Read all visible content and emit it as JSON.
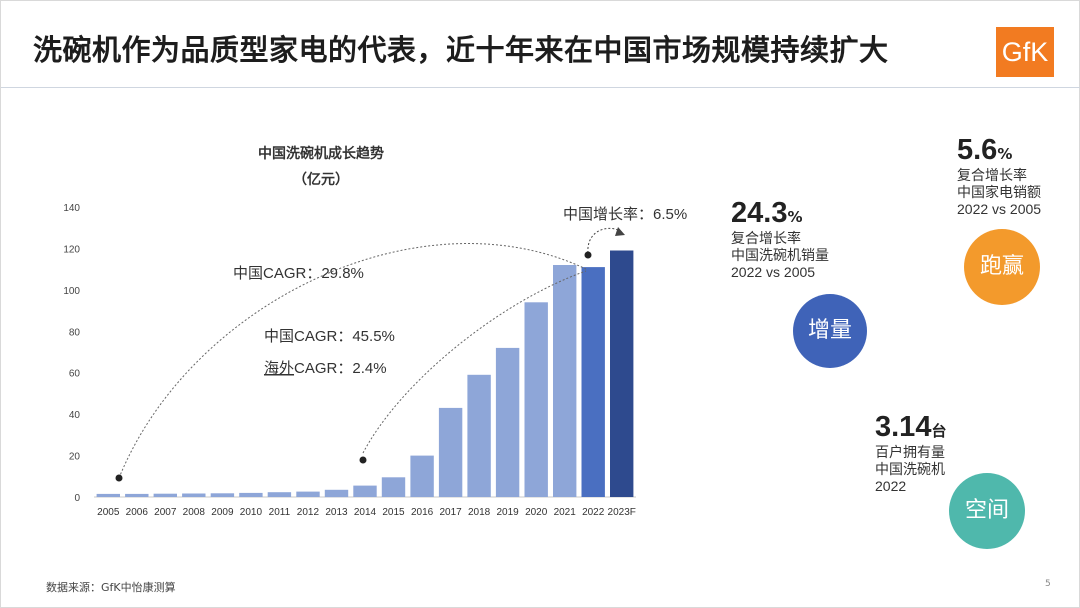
{
  "header": {
    "title": "洗碗机作为品质型家电的代表，近十年来在中国市场规模持续扩大",
    "logo_text": "GfK"
  },
  "colors": {
    "light_bar": "#8ea6d8",
    "medium_bar": "#4a6fc1",
    "dark_bar": "#2e4a8e",
    "orange": "#f39a2c",
    "teal": "#4fb8ac",
    "blue": "#3f63b8"
  },
  "chart_data": {
    "type": "bar",
    "title": "中国洗碗机成长趋势",
    "subtitle": "（亿元）",
    "categories": [
      "2005",
      "2006",
      "2007",
      "2008",
      "2009",
      "2010",
      "2011",
      "2012",
      "2013",
      "2014",
      "2015",
      "2016",
      "2017",
      "2018",
      "2019",
      "2020",
      "2021",
      "2022",
      "2023F"
    ],
    "values": [
      1.5,
      1.5,
      1.6,
      1.7,
      1.8,
      2,
      2.3,
      2.6,
      3.5,
      5.5,
      9.5,
      20,
      43,
      59,
      72,
      94,
      112,
      111,
      119
    ],
    "ylim": [
      0,
      140
    ],
    "yticks": [
      0,
      20,
      40,
      60,
      80,
      100,
      120,
      140
    ],
    "annotations": {
      "cagr_overall": "中国CAGR：29.8%",
      "cagr_recent": "中国CAGR：45.5%",
      "overseas_prefix": "海外",
      "overseas_suffix": "CAGR：2.4%",
      "growth_rate": "中国增长率：6.5%"
    }
  },
  "stats": {
    "volume": {
      "value": "24.3",
      "unit": "%",
      "lines": [
        "复合增长率",
        "中国洗碗机销量",
        "2022 vs 2005"
      ],
      "badge": "增量"
    },
    "sales": {
      "value": "5.6",
      "unit": "%",
      "lines": [
        "复合增长率",
        "中国家电销额",
        "2022 vs 2005"
      ],
      "badge": "跑赢"
    },
    "ownership": {
      "value": "3.14",
      "unit": "台",
      "lines": [
        "百户拥有量",
        "中国洗碗机",
        "2022"
      ],
      "badge": "空间"
    }
  },
  "footer": {
    "source": "数据来源：GfK中怡康测算",
    "page": "5"
  }
}
